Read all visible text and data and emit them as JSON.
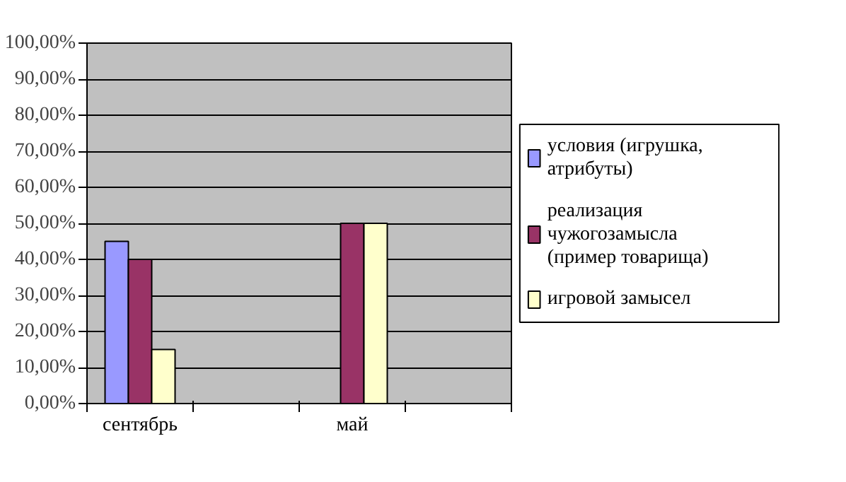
{
  "chart_data": {
    "type": "bar",
    "categories": [
      "сентябрь",
      null,
      "май",
      null
    ],
    "series": [
      {
        "name": "условия (игрушка, атрибуты)",
        "color": "#9999ff",
        "values": [
          45,
          null,
          null,
          null
        ]
      },
      {
        "name": "реализация чужогозамысла (пример товарища)",
        "color": "#993366",
        "values": [
          40,
          null,
          50,
          null
        ]
      },
      {
        "name": "игровой замысел",
        "color": "#ffffcc",
        "values": [
          15,
          null,
          50,
          null
        ]
      }
    ],
    "ylim": [
      0,
      100
    ],
    "yticks": [
      {
        "value": 0,
        "label": "0,00%"
      },
      {
        "value": 10,
        "label": "10,00%"
      },
      {
        "value": 20,
        "label": "20,00%"
      },
      {
        "value": 30,
        "label": "30,00%"
      },
      {
        "value": 40,
        "label": "40,00%"
      },
      {
        "value": 50,
        "label": "50,00%"
      },
      {
        "value": 60,
        "label": "60,00%"
      },
      {
        "value": 70,
        "label": "70,00%"
      },
      {
        "value": 80,
        "label": "80,00%"
      },
      {
        "value": 90,
        "label": "90,00%"
      },
      {
        "value": 100,
        "label": "100,00%"
      }
    ],
    "grid": "y",
    "legend": "right"
  }
}
